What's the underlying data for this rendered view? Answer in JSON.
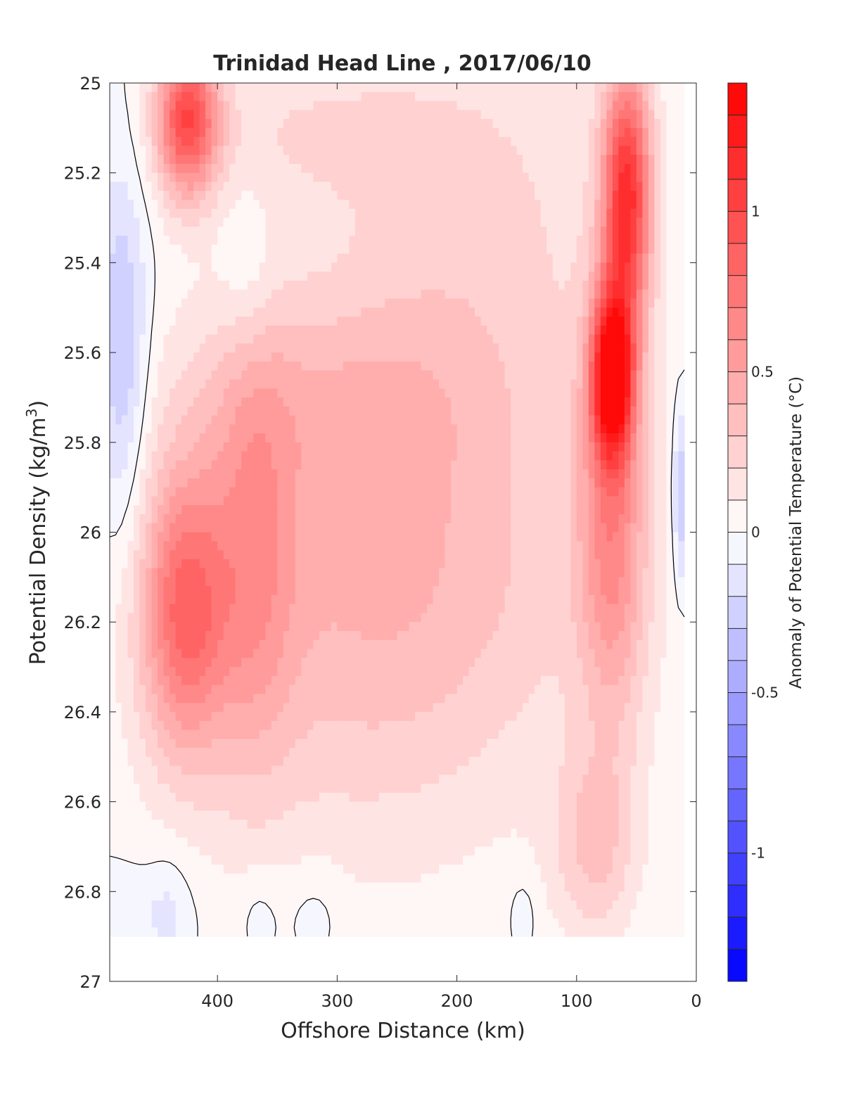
{
  "chart_data": {
    "type": "heatmap",
    "title": "Trinidad Head Line , 2017/06/10",
    "xlabel": "Offshore Distance (km)",
    "ylabel_main": "Potential Density (kg/m",
    "ylabel_sup": "3",
    "ylabel_close": ")",
    "colorbar_label": "Anomaly of Potential Temperature (°C)",
    "xlim": [
      490,
      0
    ],
    "x_reversed": true,
    "ylim": [
      25,
      27
    ],
    "y_reversed": true,
    "x_ticks": [
      400,
      300,
      200,
      100,
      0
    ],
    "x_tick_labels": [
      "400",
      "300",
      "200",
      "100",
      "0"
    ],
    "y_ticks": [
      25,
      25.2,
      25.4,
      25.6,
      25.8,
      26,
      26.2,
      26.4,
      26.6,
      26.8,
      27
    ],
    "y_tick_labels": [
      "25",
      "25.2",
      "25.4",
      "25.6",
      "25.8",
      "26",
      "26.2",
      "26.4",
      "26.6",
      "26.8",
      "27"
    ],
    "colorbar": {
      "limits": [
        -1.4,
        1.4
      ],
      "levels": 28,
      "ticks": [
        -1,
        -0.5,
        0,
        0.5,
        1
      ],
      "tick_labels": [
        "-1",
        "-0.5",
        "0",
        "0.5",
        "1"
      ],
      "neg_color": "#0000ff",
      "zero_color": "#ffffff",
      "pos_color": "#ff0000"
    },
    "grid": false,
    "contour_line_level": 0,
    "data_extent": {
      "x": [
        490,
        10
      ],
      "y": [
        25,
        26.9
      ]
    },
    "features": [
      {
        "x": 480,
        "y": 25.6,
        "anomaly": -0.35,
        "sx": 15,
        "sy": 0.28
      },
      {
        "x": 478,
        "y": 26.85,
        "anomaly": -0.1,
        "sx": 40,
        "sy": 0.08
      },
      {
        "x": 440,
        "y": 26.85,
        "anomaly": -0.1,
        "sx": 12,
        "sy": 0.1
      },
      {
        "x": 365,
        "y": 26.85,
        "anomaly": -0.1,
        "sx": 13,
        "sy": 0.08
      },
      {
        "x": 320,
        "y": 26.85,
        "anomaly": -0.1,
        "sx": 18,
        "sy": 0.08
      },
      {
        "x": 145,
        "y": 26.85,
        "anomaly": -0.1,
        "sx": 8,
        "sy": 0.06
      },
      {
        "x": 375,
        "y": 25.42,
        "anomaly": -0.12,
        "sx": 16,
        "sy": 0.14
      },
      {
        "x": 12,
        "y": 25.92,
        "anomaly": -0.4,
        "sx": 5,
        "sy": 0.14
      },
      {
        "x": 425,
        "y": 25.08,
        "anomaly": 0.95,
        "sx": 18,
        "sy": 0.12
      },
      {
        "x": 428,
        "y": 26.18,
        "anomaly": 0.7,
        "sx": 25,
        "sy": 0.22
      },
      {
        "x": 370,
        "y": 26.05,
        "anomaly": 0.35,
        "sx": 25,
        "sy": 0.35
      },
      {
        "x": 300,
        "y": 26.1,
        "anomaly": 0.25,
        "sx": 110,
        "sy": 0.45
      },
      {
        "x": 310,
        "y": 25.7,
        "anomaly": 0.15,
        "sx": 90,
        "sy": 0.15
      },
      {
        "x": 215,
        "y": 26.1,
        "anomaly": 0.2,
        "sx": 120,
        "sy": 0.35
      },
      {
        "x": 330,
        "y": 25.1,
        "anomaly": 0.15,
        "sx": 80,
        "sy": 0.12
      },
      {
        "x": 180,
        "y": 25.3,
        "anomaly": 0.2,
        "sx": 90,
        "sy": 0.35
      },
      {
        "x": 70,
        "y": 25.65,
        "anomaly": 1.35,
        "sx": 12,
        "sy": 0.13
      },
      {
        "x": 58,
        "y": 25.25,
        "anomaly": 1.1,
        "sx": 14,
        "sy": 0.2
      },
      {
        "x": 70,
        "y": 26.0,
        "anomaly": 0.55,
        "sx": 20,
        "sy": 0.3
      },
      {
        "x": 85,
        "y": 26.7,
        "anomaly": 0.3,
        "sx": 25,
        "sy": 0.15
      }
    ]
  }
}
